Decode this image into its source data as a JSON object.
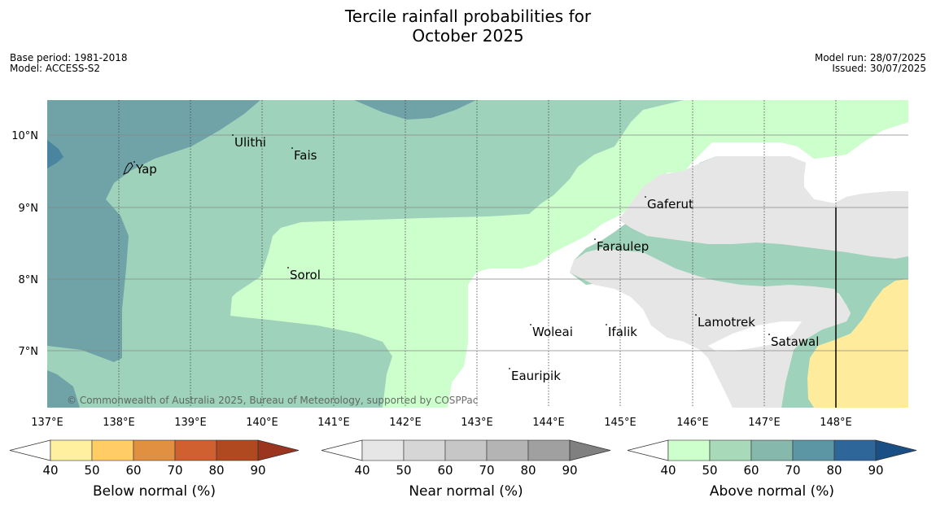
{
  "title_line1": "Tercile rainfall probabilities for",
  "title_line2": "October 2025",
  "meta": {
    "base_period": "Base period: 1981-2018",
    "model": "Model: ACCESS-S2",
    "model_run": "Model run: 28/07/2025",
    "issued": "Issued: 30/07/2025"
  },
  "map": {
    "lon_ticks": [
      "137°E",
      "138°E",
      "139°E",
      "140°E",
      "141°E",
      "142°E",
      "143°E",
      "144°E",
      "145°E",
      "146°E",
      "147°E",
      "148°E"
    ],
    "lat_ticks": [
      "10°N",
      "9°N",
      "8°N",
      "7°N"
    ],
    "places": [
      "Yap",
      "Ulithi",
      "Fais",
      "Gaferut",
      "Faraulep",
      "Sorol",
      "Woleai",
      "Ifalik",
      "Lamotrek",
      "Satawal",
      "Eauripik"
    ],
    "copyright": "© Commonwealth of Australia 2025, Bureau of Meteorology, supported by COSPPac",
    "colors": {
      "above_60_70": "#7fb3a9",
      "above_70_80": "#6fa3a8",
      "above_50_60": "#9fd2ba",
      "above_40_50": "#ccffcc",
      "near_40_50": "#e6e6e6",
      "below_40_50": "#ffeb9c",
      "above_80_90": "#4a85a0"
    }
  },
  "colorbars": [
    {
      "label": "Below normal (%)",
      "ticks": [
        "40",
        "50",
        "60",
        "70",
        "80",
        "90"
      ],
      "colors": [
        "#fff0a0",
        "#ffcc66",
        "#e09040",
        "#d06030",
        "#b04820",
        "#9b3520"
      ]
    },
    {
      "label": "Near normal (%)",
      "ticks": [
        "40",
        "50",
        "60",
        "70",
        "80",
        "90"
      ],
      "colors": [
        "#e6e6e6",
        "#d6d6d6",
        "#c6c6c6",
        "#b4b4b4",
        "#a0a0a0",
        "#808080"
      ]
    },
    {
      "label": "Above normal (%)",
      "ticks": [
        "40",
        "50",
        "60",
        "70",
        "80",
        "90"
      ],
      "colors": [
        "#ccffcc",
        "#a8d9b8",
        "#86b8ab",
        "#5c96a4",
        "#2e6699",
        "#1a4f85"
      ]
    }
  ]
}
